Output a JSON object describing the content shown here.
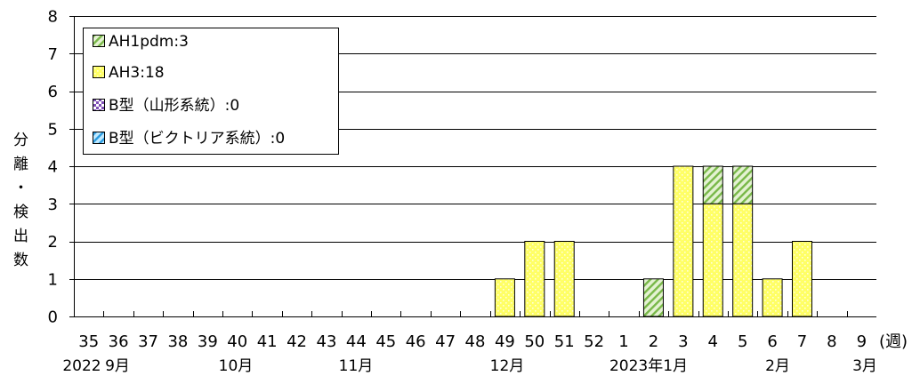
{
  "chart_data": {
    "type": "bar",
    "stacked": true,
    "categories": [
      "35",
      "36",
      "37",
      "38",
      "39",
      "40",
      "41",
      "42",
      "43",
      "44",
      "45",
      "46",
      "47",
      "48",
      "49",
      "50",
      "51",
      "52",
      "1",
      "2",
      "3",
      "4",
      "5",
      "6",
      "7",
      "8",
      "9"
    ],
    "x_unit_label": "(週)",
    "month_labels": [
      "2022",
      "9月",
      "10月",
      "11月",
      "12月",
      "2023年1月",
      "2月",
      "3月"
    ],
    "ylabel": "分離・検出数",
    "ylim": [
      0,
      8
    ],
    "yticks": [
      0,
      1,
      2,
      3,
      4,
      5,
      6,
      7,
      8
    ],
    "grid": true,
    "legend_position": "top-left",
    "series": [
      {
        "name": "AH1pdm:3",
        "pattern": "diagonal-stripes",
        "color": "#e4f2d2",
        "accent": "#78b848",
        "values": [
          0,
          0,
          0,
          0,
          0,
          0,
          0,
          0,
          0,
          0,
          0,
          0,
          0,
          0,
          0,
          0,
          0,
          0,
          0,
          1,
          0,
          1,
          1,
          0,
          0,
          0,
          0
        ]
      },
      {
        "name": "AH3:18",
        "pattern": "dots",
        "color": "#ffff66",
        "accent": "#ffffd9",
        "values": [
          0,
          0,
          0,
          0,
          0,
          0,
          0,
          0,
          0,
          0,
          0,
          0,
          0,
          0,
          1,
          2,
          2,
          0,
          0,
          0,
          4,
          3,
          3,
          1,
          2,
          0,
          0
        ]
      },
      {
        "name": "B型（山形系統）:0",
        "pattern": "checks",
        "color": "#ffffff",
        "accent": "#8050b8",
        "values": [
          0,
          0,
          0,
          0,
          0,
          0,
          0,
          0,
          0,
          0,
          0,
          0,
          0,
          0,
          0,
          0,
          0,
          0,
          0,
          0,
          0,
          0,
          0,
          0,
          0,
          0,
          0
        ]
      },
      {
        "name": "B型（ビクトリア系統）:0",
        "pattern": "diagonal-stripes",
        "color": "#bfe9ff",
        "accent": "#2a9be0",
        "values": [
          0,
          0,
          0,
          0,
          0,
          0,
          0,
          0,
          0,
          0,
          0,
          0,
          0,
          0,
          0,
          0,
          0,
          0,
          0,
          0,
          0,
          0,
          0,
          0,
          0,
          0,
          0
        ]
      }
    ]
  }
}
